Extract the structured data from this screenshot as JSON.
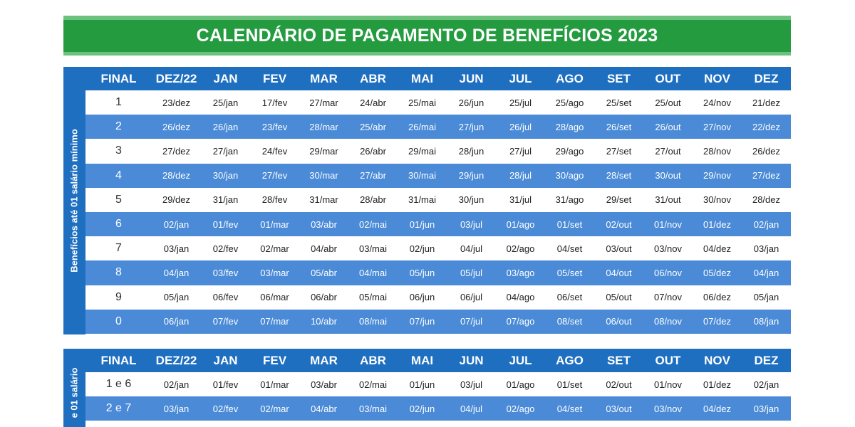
{
  "title": "CALENDÁRIO DE PAGAMENTO DE BENEFÍCIOS 2023",
  "headers": [
    "FINAL",
    "DEZ/22",
    "JAN",
    "FEV",
    "MAR",
    "ABR",
    "MAI",
    "JUN",
    "JUL",
    "AGO",
    "SET",
    "OUT",
    "NOV",
    "DEZ"
  ],
  "table1": {
    "side_label": "Benefícios até 01 salário mínimo",
    "rows": [
      [
        "1",
        "23/dez",
        "25/jan",
        "17/fev",
        "27/mar",
        "24/abr",
        "25/mai",
        "26/jun",
        "25/jul",
        "25/ago",
        "25/set",
        "25/out",
        "24/nov",
        "21/dez"
      ],
      [
        "2",
        "26/dez",
        "26/jan",
        "23/fev",
        "28/mar",
        "25/abr",
        "26/mai",
        "27/jun",
        "26/jul",
        "28/ago",
        "26/set",
        "26/out",
        "27/nov",
        "22/dez"
      ],
      [
        "3",
        "27/dez",
        "27/jan",
        "24/fev",
        "29/mar",
        "26/abr",
        "29/mai",
        "28/jun",
        "27/jul",
        "29/ago",
        "27/set",
        "27/out",
        "28/nov",
        "26/dez"
      ],
      [
        "4",
        "28/dez",
        "30/jan",
        "27/fev",
        "30/mar",
        "27/abr",
        "30/mai",
        "29/jun",
        "28/jul",
        "30/ago",
        "28/set",
        "30/out",
        "29/nov",
        "27/dez"
      ],
      [
        "5",
        "29/dez",
        "31/jan",
        "28/fev",
        "31/mar",
        "28/abr",
        "31/mai",
        "30/jun",
        "31/jul",
        "31/ago",
        "29/set",
        "31/out",
        "30/nov",
        "28/dez"
      ],
      [
        "6",
        "02/jan",
        "01/fev",
        "01/mar",
        "03/abr",
        "02/mai",
        "01/jun",
        "03/jul",
        "01/ago",
        "01/set",
        "02/out",
        "01/nov",
        "01/dez",
        "02/jan"
      ],
      [
        "7",
        "03/jan",
        "02/fev",
        "02/mar",
        "04/abr",
        "03/mai",
        "02/jun",
        "04/jul",
        "02/ago",
        "04/set",
        "03/out",
        "03/nov",
        "04/dez",
        "03/jan"
      ],
      [
        "8",
        "04/jan",
        "03/fev",
        "03/mar",
        "05/abr",
        "04/mai",
        "05/jun",
        "05/jul",
        "03/ago",
        "05/set",
        "04/out",
        "06/nov",
        "05/dez",
        "04/jan"
      ],
      [
        "9",
        "05/jan",
        "06/fev",
        "06/mar",
        "06/abr",
        "05/mai",
        "06/jun",
        "06/jul",
        "04/ago",
        "06/set",
        "05/out",
        "07/nov",
        "06/dez",
        "05/jan"
      ],
      [
        "0",
        "06/jan",
        "07/fev",
        "07/mar",
        "10/abr",
        "08/mai",
        "07/jun",
        "07/jul",
        "07/ago",
        "08/set",
        "06/out",
        "08/nov",
        "07/dez",
        "08/jan"
      ]
    ]
  },
  "table2": {
    "side_label": "e 01 salário",
    "rows": [
      [
        "1 e 6",
        "02/jan",
        "01/fev",
        "01/mar",
        "03/abr",
        "02/mai",
        "01/jun",
        "03/jul",
        "01/ago",
        "01/set",
        "02/out",
        "01/nov",
        "01/dez",
        "02/jan"
      ],
      [
        "2 e 7",
        "03/jan",
        "02/fev",
        "02/mar",
        "04/abr",
        "03/mai",
        "02/jun",
        "04/jul",
        "02/ago",
        "04/set",
        "03/out",
        "03/nov",
        "04/dez",
        "03/jan"
      ]
    ]
  },
  "colors": {
    "banner_green": "#239b3e",
    "banner_stripe": "#6cc27c",
    "header_blue": "#1f6fc1",
    "stripe_blue": "#4a8ad6"
  }
}
